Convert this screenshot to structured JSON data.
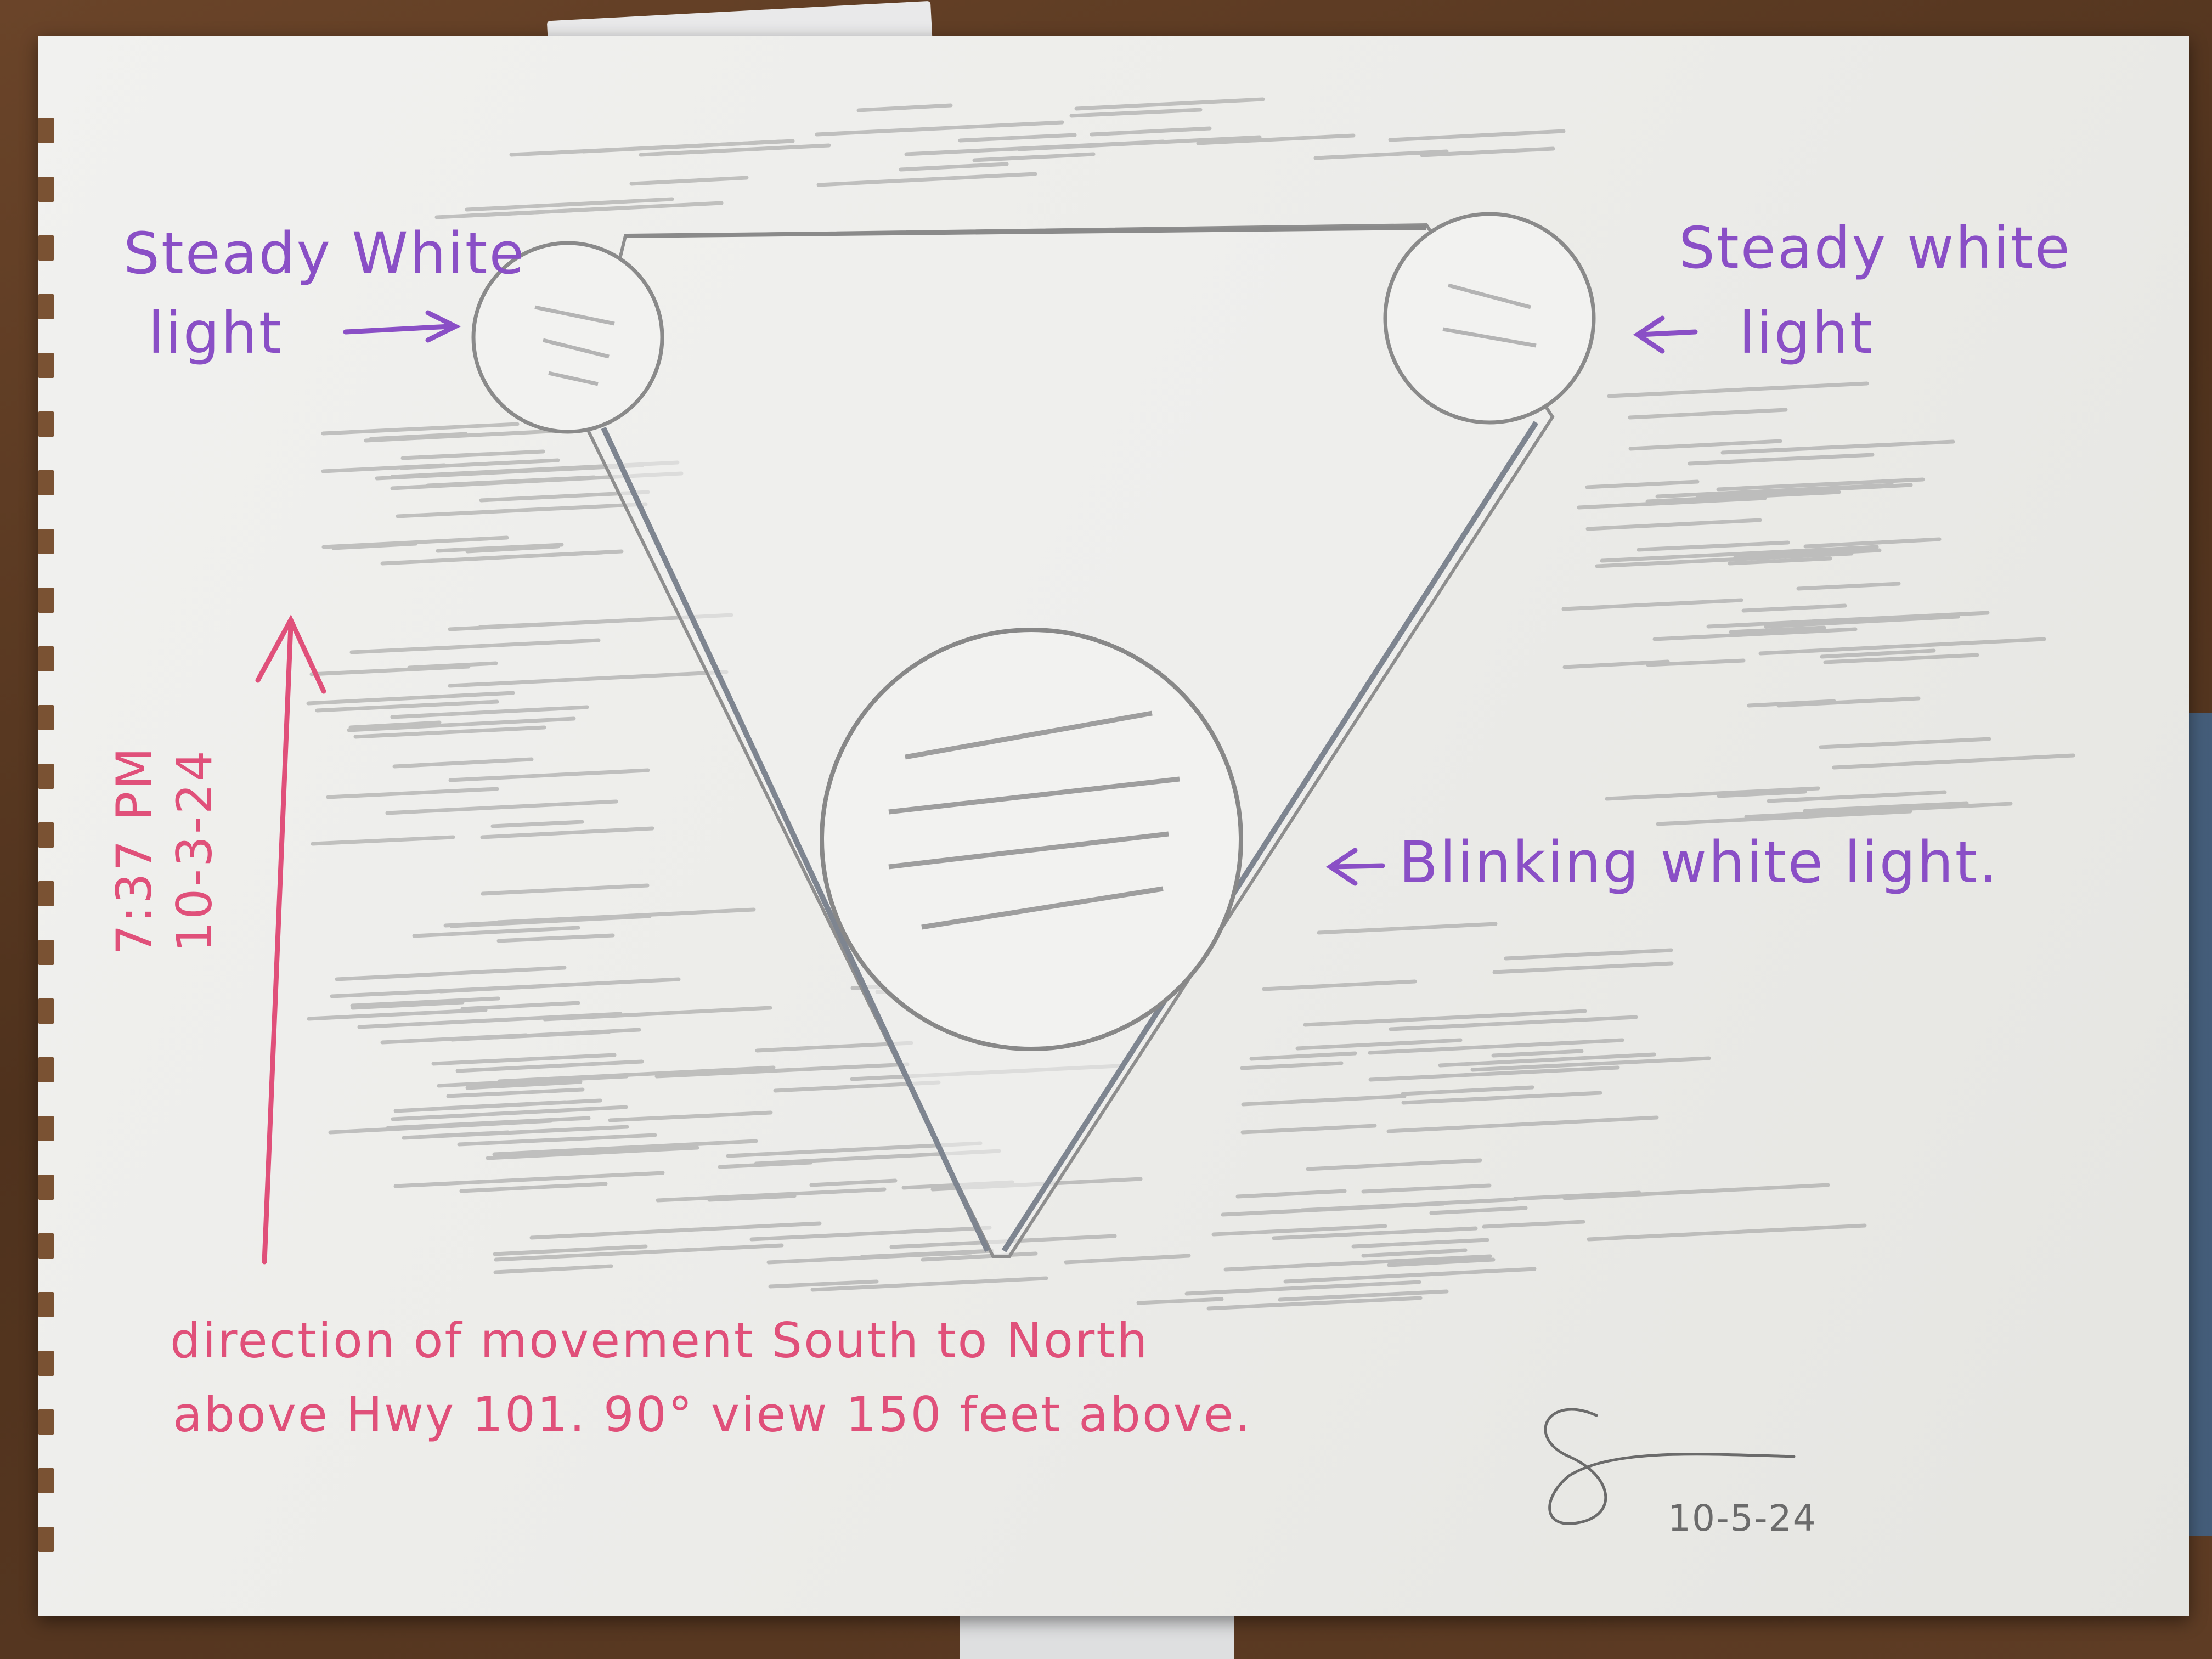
{
  "labels": {
    "top_left_light": [
      "Steady White",
      "light"
    ],
    "top_right_light": [
      "Steady white",
      "light"
    ],
    "bottom_light": "Blinking white light.",
    "time": "7:37 PM",
    "date": "10-3-24",
    "direction_line1": "direction of movement South to North",
    "direction_line2": "above Hwy 101. 90° view 150 feet above.",
    "signed_date": "10-5-24"
  },
  "colors": {
    "purple_ink": "#8a4fc6",
    "pink_ink": "#e0507a",
    "pencil_gray": "#8c8c8c"
  },
  "icons": {
    "left_arrow": "arrow-right-icon",
    "right_arrow": "arrow-left-icon",
    "direction_arrow": "arrow-up-icon"
  }
}
